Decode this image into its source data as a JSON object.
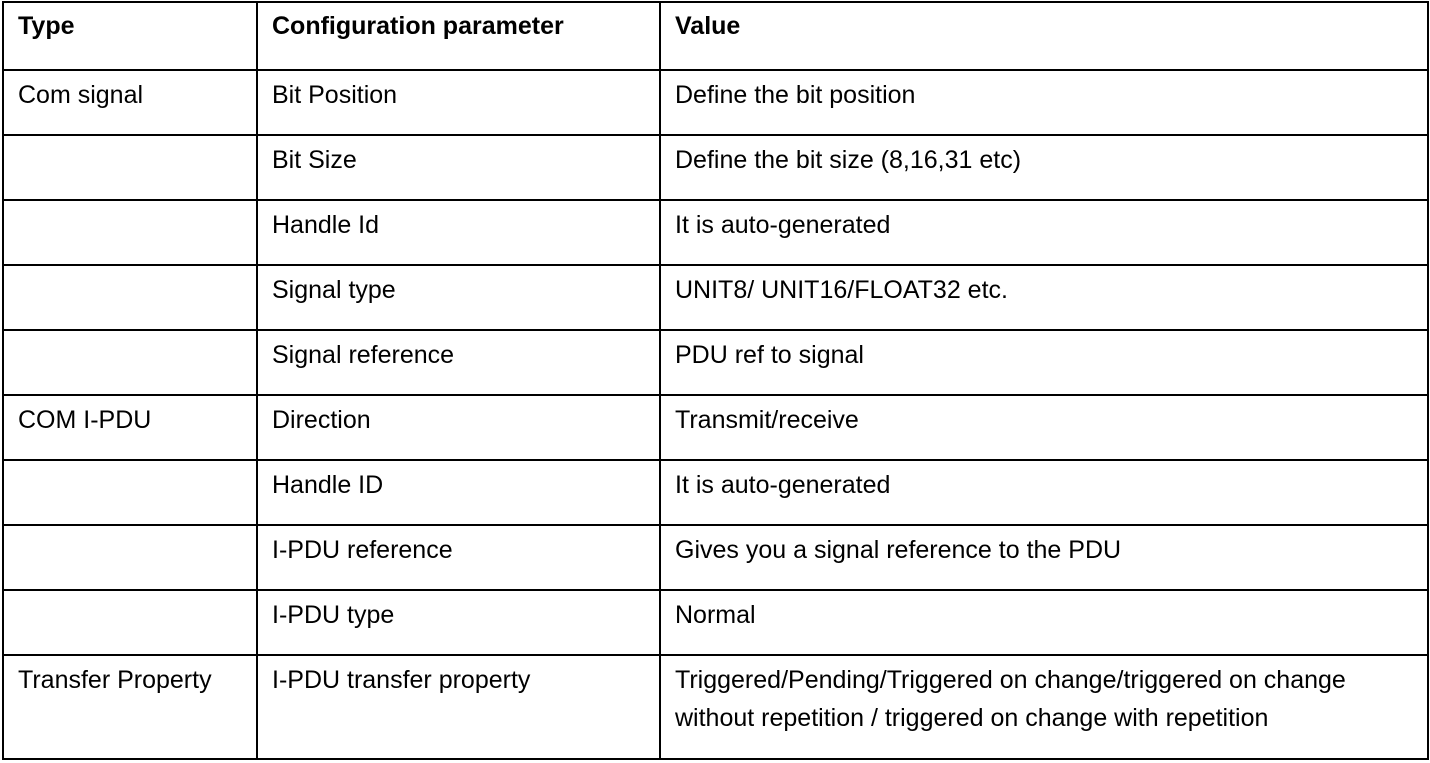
{
  "table": {
    "headers": [
      "Type",
      "Configuration parameter",
      "Value"
    ],
    "rows": [
      {
        "type": "Com signal",
        "parameter": "Bit Position",
        "value": "Define the bit position"
      },
      {
        "type": "",
        "parameter": "Bit Size",
        "value": "Define the bit size (8,16,31 etc)"
      },
      {
        "type": "",
        "parameter": "Handle Id",
        "value": "It is auto-generated"
      },
      {
        "type": "",
        "parameter": "Signal type",
        "value": "UNIT8/ UNIT16/FLOAT32 etc."
      },
      {
        "type": "",
        "parameter": "Signal reference",
        "value": "PDU ref to signal"
      },
      {
        "type": "COM I-PDU",
        "parameter": "Direction",
        "value": "Transmit/receive"
      },
      {
        "type": "",
        "parameter": "Handle ID",
        "value": "It is auto-generated"
      },
      {
        "type": "",
        "parameter": "I-PDU reference",
        "value": "Gives you a signal reference to the PDU"
      },
      {
        "type": "",
        "parameter": "I-PDU type",
        "value": "Normal"
      },
      {
        "type": "Transfer Property",
        "parameter": "I-PDU transfer property",
        "value": "Triggered/Pending/Triggered on change/triggered on change without repetition / triggered on change with repetition"
      }
    ]
  }
}
